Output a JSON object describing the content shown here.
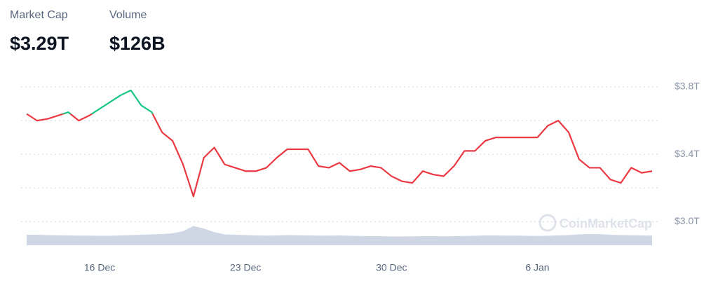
{
  "header": {
    "stats": [
      {
        "label": "Market Cap",
        "value": "$3.29T"
      },
      {
        "label": "Volume",
        "value": "$126B"
      }
    ]
  },
  "chart_data": {
    "type": "line",
    "watermark": "CoinMarketCap",
    "categories": [
      null,
      null,
      null,
      null,
      null,
      null,
      null,
      "16 Dec",
      null,
      null,
      null,
      null,
      null,
      null,
      null,
      null,
      null,
      null,
      null,
      null,
      null,
      "23 Dec",
      null,
      null,
      null,
      null,
      null,
      null,
      null,
      null,
      null,
      null,
      null,
      null,
      null,
      "30 Dec",
      null,
      null,
      null,
      null,
      null,
      null,
      null,
      null,
      null,
      null,
      null,
      null,
      null,
      "6 Jan",
      null,
      null,
      null,
      null,
      null,
      null,
      null,
      null,
      null,
      null,
      null
    ],
    "series": [
      {
        "name": "Market Cap",
        "up_color": "#16c784",
        "down_color": "#ea3943",
        "values": [
          3.64,
          3.6,
          3.61,
          3.63,
          3.65,
          3.6,
          3.63,
          3.67,
          3.71,
          3.75,
          3.78,
          3.69,
          3.65,
          3.53,
          3.48,
          3.34,
          3.15,
          3.38,
          3.44,
          3.34,
          3.32,
          3.3,
          3.3,
          3.32,
          3.38,
          3.43,
          3.43,
          3.43,
          3.33,
          3.32,
          3.35,
          3.3,
          3.31,
          3.33,
          3.32,
          3.27,
          3.24,
          3.23,
          3.3,
          3.28,
          3.27,
          3.33,
          3.42,
          3.42,
          3.48,
          3.5,
          3.5,
          3.5,
          3.5,
          3.5,
          3.57,
          3.6,
          3.53,
          3.37,
          3.32,
          3.32,
          3.25,
          3.23,
          3.32,
          3.29,
          3.3
        ]
      },
      {
        "name": "Volume",
        "axis": "y2",
        "color": "#cfd6e4",
        "values": [
          60,
          60,
          58,
          57,
          56,
          55,
          55,
          54,
          54,
          56,
          58,
          60,
          62,
          64,
          68,
          80,
          110,
          95,
          75,
          62,
          60,
          58,
          56,
          55,
          56,
          58,
          57,
          56,
          55,
          55,
          56,
          54,
          53,
          52,
          52,
          50,
          50,
          51,
          52,
          52,
          51,
          52,
          53,
          54,
          56,
          56,
          55,
          55,
          54,
          53,
          54,
          56,
          58,
          62,
          64,
          63,
          60,
          58,
          57,
          56,
          55
        ]
      }
    ],
    "ylim": [
      2.86,
      3.9
    ],
    "yticks": [
      {
        "value": 3.0,
        "label": "$3.0T"
      },
      {
        "value": 3.4,
        "label": "$3.4T"
      },
      {
        "value": 3.8,
        "label": "$3.8T"
      }
    ],
    "y2lim": [
      0,
      400
    ],
    "grid": true
  }
}
